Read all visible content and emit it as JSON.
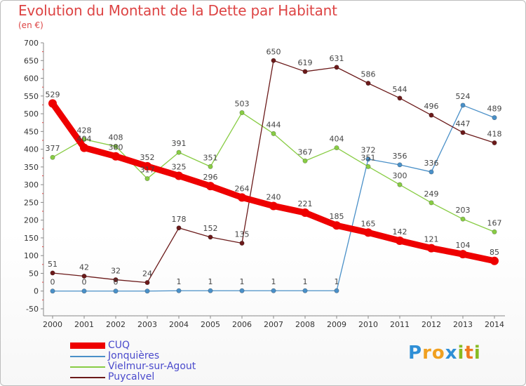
{
  "header": {
    "title": "Evolution du Montant de la Dette par Habitant",
    "subtitle": "(en €)"
  },
  "logo": {
    "text": "Proxiti"
  },
  "chart_data": {
    "type": "line",
    "title": "Evolution du Montant de la Dette par Habitant",
    "ylabel": "(en €)",
    "x": [
      2000,
      2001,
      2002,
      2003,
      2004,
      2005,
      2006,
      2007,
      2008,
      2009,
      2010,
      2011,
      2012,
      2013,
      2014
    ],
    "ylim": [
      -50,
      700
    ],
    "yticks": [
      -50,
      0,
      50,
      100,
      150,
      200,
      250,
      300,
      350,
      400,
      450,
      500,
      550,
      600,
      650,
      700
    ],
    "grid": false,
    "legend_position": "bottom-left",
    "series": [
      {
        "name": "CUQ",
        "color": "#ee0000",
        "values": [
          529,
          404,
          380,
          352,
          325,
          296,
          264,
          240,
          221,
          185,
          165,
          142,
          121,
          104,
          85
        ],
        "labels": [
          "529",
          "404",
          "380",
          "352",
          "325",
          "296",
          "264",
          "240",
          "221",
          "185",
          "165",
          "142",
          "121",
          "104",
          "85"
        ]
      },
      {
        "name": "Jonquières",
        "color": "#4a90c8",
        "values": [
          0,
          0,
          0,
          0,
          1,
          1,
          1,
          1,
          1,
          1,
          372,
          356,
          336,
          524,
          489
        ],
        "labels": [
          "0",
          "0",
          "0",
          "",
          "1",
          "1",
          "1",
          "1",
          "1",
          "1",
          "372",
          "356",
          "336",
          "524",
          "489"
        ]
      },
      {
        "name": "Vielmur-sur-Agout",
        "color": "#88cc44",
        "values": [
          377,
          428,
          408,
          317,
          391,
          351,
          503,
          444,
          367,
          404,
          351,
          300,
          249,
          203,
          167
        ],
        "labels": [
          "377",
          "428",
          "408",
          "317",
          "391",
          "351",
          "503",
          "444",
          "367",
          "404",
          "351",
          "300",
          "249",
          "203",
          "167"
        ]
      },
      {
        "name": "Puycalvel",
        "color": "#6b1a1a",
        "values": [
          51,
          42,
          32,
          24,
          178,
          152,
          135,
          650,
          619,
          631,
          586,
          544,
          496,
          447,
          418
        ],
        "labels": [
          "51",
          "42",
          "32",
          "24",
          "178",
          "152",
          "135",
          "650",
          "619",
          "631",
          "586",
          "544",
          "496",
          "447",
          "418"
        ]
      }
    ]
  }
}
